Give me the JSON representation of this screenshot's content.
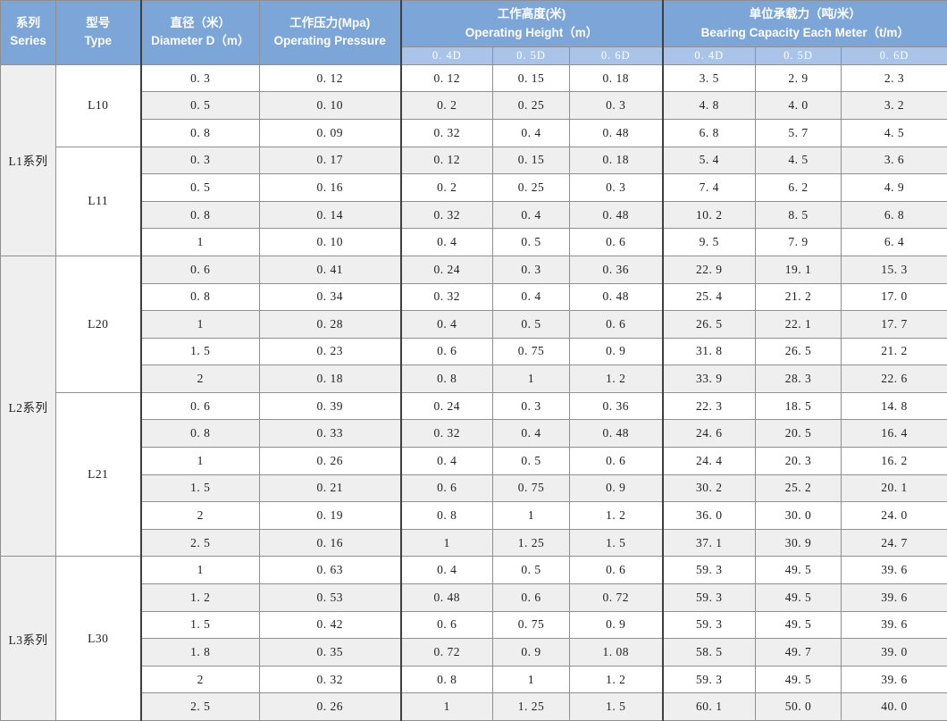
{
  "table": {
    "header": {
      "series": {
        "zh": "系列",
        "en": "Series"
      },
      "type": {
        "zh": "型号",
        "en": "Type"
      },
      "diameter": {
        "zh": "直径（米）",
        "en": "Diameter D（m）"
      },
      "pressure": {
        "zh": "工作压力(Mpa)",
        "en": "Operating Pressure"
      },
      "height": {
        "zh": "工作高度(米)",
        "en": "Operating Height（m）"
      },
      "bearing": {
        "zh": "单位承载力（吨/米）",
        "en": "Bearing Capacity Each Meter（t/m）"
      }
    },
    "subcols": [
      "0. 4D",
      "0. 5D",
      "0. 6D"
    ],
    "groups": [
      {
        "series": "L1系列",
        "types": [
          {
            "type": "L10",
            "rows": [
              [
                "0. 3",
                "0. 12",
                "0. 12",
                "0. 15",
                "0. 18",
                "3. 5",
                "2. 9",
                "2. 3"
              ],
              [
                "0. 5",
                "0. 10",
                "0. 2",
                "0. 25",
                "0. 3",
                "4. 8",
                "4. 0",
                "3. 2"
              ],
              [
                "0. 8",
                "0. 09",
                "0. 32",
                "0. 4",
                "0. 48",
                "6. 8",
                "5. 7",
                "4. 5"
              ]
            ]
          },
          {
            "type": "L11",
            "rows": [
              [
                "0. 3",
                "0. 17",
                "0. 12",
                "0. 15",
                "0. 18",
                "5. 4",
                "4. 5",
                "3. 6"
              ],
              [
                "0. 5",
                "0. 16",
                "0. 2",
                "0. 25",
                "0. 3",
                "7. 4",
                "6. 2",
                "4. 9"
              ],
              [
                "0. 8",
                "0. 14",
                "0. 32",
                "0. 4",
                "0. 48",
                "10. 2",
                "8. 5",
                "6. 8"
              ],
              [
                "1",
                "0. 10",
                "0. 4",
                "0. 5",
                "0. 6",
                "9. 5",
                "7. 9",
                "6. 4"
              ]
            ]
          }
        ]
      },
      {
        "series": "L2系列",
        "types": [
          {
            "type": "L20",
            "rows": [
              [
                "0. 6",
                "0. 41",
                "0. 24",
                "0. 3",
                "0. 36",
                "22. 9",
                "19. 1",
                "15. 3"
              ],
              [
                "0. 8",
                "0. 34",
                "0. 32",
                "0. 4",
                "0. 48",
                "25. 4",
                "21. 2",
                "17. 0"
              ],
              [
                "1",
                "0. 28",
                "0. 4",
                "0. 5",
                "0. 6",
                "26. 5",
                "22. 1",
                "17. 7"
              ],
              [
                "1. 5",
                "0. 23",
                "0. 6",
                "0. 75",
                "0. 9",
                "31. 8",
                "26. 5",
                "21. 2"
              ],
              [
                "2",
                "0. 18",
                "0. 8",
                "1",
                "1. 2",
                "33. 9",
                "28. 3",
                "22. 6"
              ]
            ]
          },
          {
            "type": "L21",
            "rows": [
              [
                "0. 6",
                "0. 39",
                "0. 24",
                "0. 3",
                "0. 36",
                "22. 3",
                "18. 5",
                "14. 8"
              ],
              [
                "0. 8",
                "0. 33",
                "0. 32",
                "0. 4",
                "0. 48",
                "24. 6",
                "20. 5",
                "16. 4"
              ],
              [
                "1",
                "0. 26",
                "0. 4",
                "0. 5",
                "0. 6",
                "24. 4",
                "20. 3",
                "16. 2"
              ],
              [
                "1. 5",
                "0. 21",
                "0. 6",
                "0. 75",
                "0. 9",
                "30. 2",
                "25. 2",
                "20. 1"
              ],
              [
                "2",
                "0. 19",
                "0. 8",
                "1",
                "1. 2",
                "36. 0",
                "30. 0",
                "24. 0"
              ],
              [
                "2. 5",
                "0. 16",
                "1",
                "1. 25",
                "1. 5",
                "37. 1",
                "30. 9",
                "24. 7"
              ]
            ]
          }
        ]
      },
      {
        "series": "L3系列",
        "types": [
          {
            "type": "L30",
            "rows": [
              [
                "1",
                "0. 63",
                "0. 4",
                "0. 5",
                "0. 6",
                "59. 3",
                "49. 5",
                "39. 6"
              ],
              [
                "1. 2",
                "0. 53",
                "0. 48",
                "0. 6",
                "0. 72",
                "59. 3",
                "49. 5",
                "39. 6"
              ],
              [
                "1. 5",
                "0. 42",
                "0. 6",
                "0. 75",
                "0. 9",
                "59. 3",
                "49. 5",
                "39. 6"
              ],
              [
                "1. 8",
                "0. 35",
                "0. 72",
                "0. 9",
                "1. 08",
                "58. 5",
                "49. 7",
                "39. 0"
              ],
              [
                "2",
                "0. 32",
                "0. 8",
                "1",
                "1. 2",
                "59. 3",
                "49. 5",
                "39. 6"
              ],
              [
                "2. 5",
                "0. 26",
                "1",
                "1. 25",
                "1. 5",
                "60. 1",
                "50. 0",
                "40. 0"
              ]
            ]
          }
        ]
      }
    ]
  },
  "colors": {
    "header_blue": "#7CA5D8",
    "subheader_blue": "#A9C4E8",
    "stripe_gray": "#EFEFEF",
    "grid_line": "#8F8F8F",
    "heavy_line": "#3F3F3F",
    "body_text": "#1F1F1F",
    "header_text": "#FFFFFF"
  }
}
